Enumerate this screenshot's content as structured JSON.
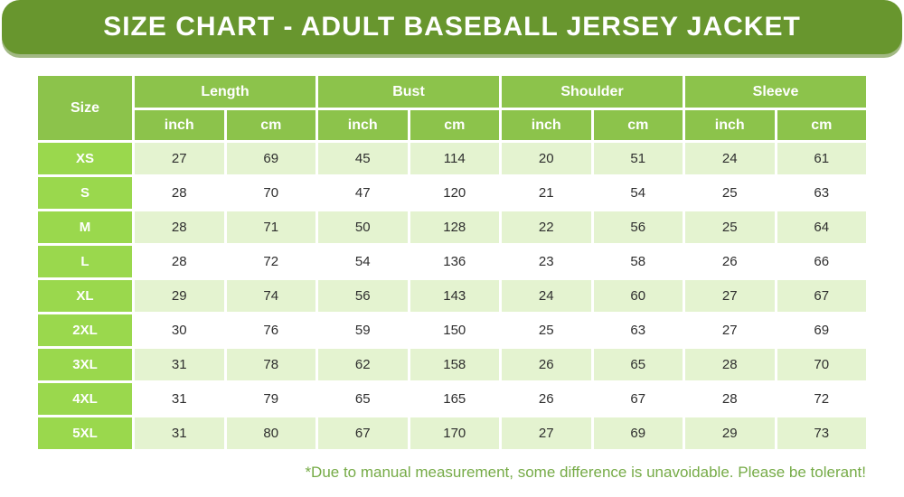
{
  "banner": {
    "title": "SIZE CHART - ADULT BASEBALL JERSEY JACKET"
  },
  "chart_data": {
    "type": "table",
    "title": "SIZE CHART - ADULT BASEBALL JERSEY JACKET",
    "corner_label": "Size",
    "groups": [
      "Length",
      "Bust",
      "Shoulder",
      "Sleeve"
    ],
    "sub_headers": [
      "inch",
      "cm"
    ],
    "columns": [
      "Size",
      "Length inch",
      "Length cm",
      "Bust inch",
      "Bust cm",
      "Shoulder inch",
      "Shoulder cm",
      "Sleeve inch",
      "Sleeve cm"
    ],
    "rows": [
      {
        "size": "XS",
        "values": [
          27,
          69,
          45,
          114,
          20,
          51,
          24,
          61
        ]
      },
      {
        "size": "S",
        "values": [
          28,
          70,
          47,
          120,
          21,
          54,
          25,
          63
        ]
      },
      {
        "size": "M",
        "values": [
          28,
          71,
          50,
          128,
          22,
          56,
          25,
          64
        ]
      },
      {
        "size": "L",
        "values": [
          28,
          72,
          54,
          136,
          23,
          58,
          26,
          66
        ]
      },
      {
        "size": "XL",
        "values": [
          29,
          74,
          56,
          143,
          24,
          60,
          27,
          67
        ]
      },
      {
        "size": "2XL",
        "values": [
          30,
          76,
          59,
          150,
          25,
          63,
          27,
          69
        ]
      },
      {
        "size": "3XL",
        "values": [
          31,
          78,
          62,
          158,
          26,
          65,
          28,
          70
        ]
      },
      {
        "size": "4XL",
        "values": [
          31,
          79,
          65,
          165,
          26,
          67,
          28,
          72
        ]
      },
      {
        "size": "5XL",
        "values": [
          31,
          80,
          67,
          170,
          27,
          69,
          29,
          73
        ]
      }
    ],
    "note": "*Due to manual measurement, some difference is unavoidable. Please be tolerant!"
  },
  "colors": {
    "banner_green": "#68962e",
    "header_green": "#8cc34b",
    "size_column_green": "#9ad84d",
    "stripe_row_green": "#e4f3d0",
    "note_green": "#76ab47",
    "value_text": "#2e2e2e",
    "grid_lines": "#ffffff"
  }
}
